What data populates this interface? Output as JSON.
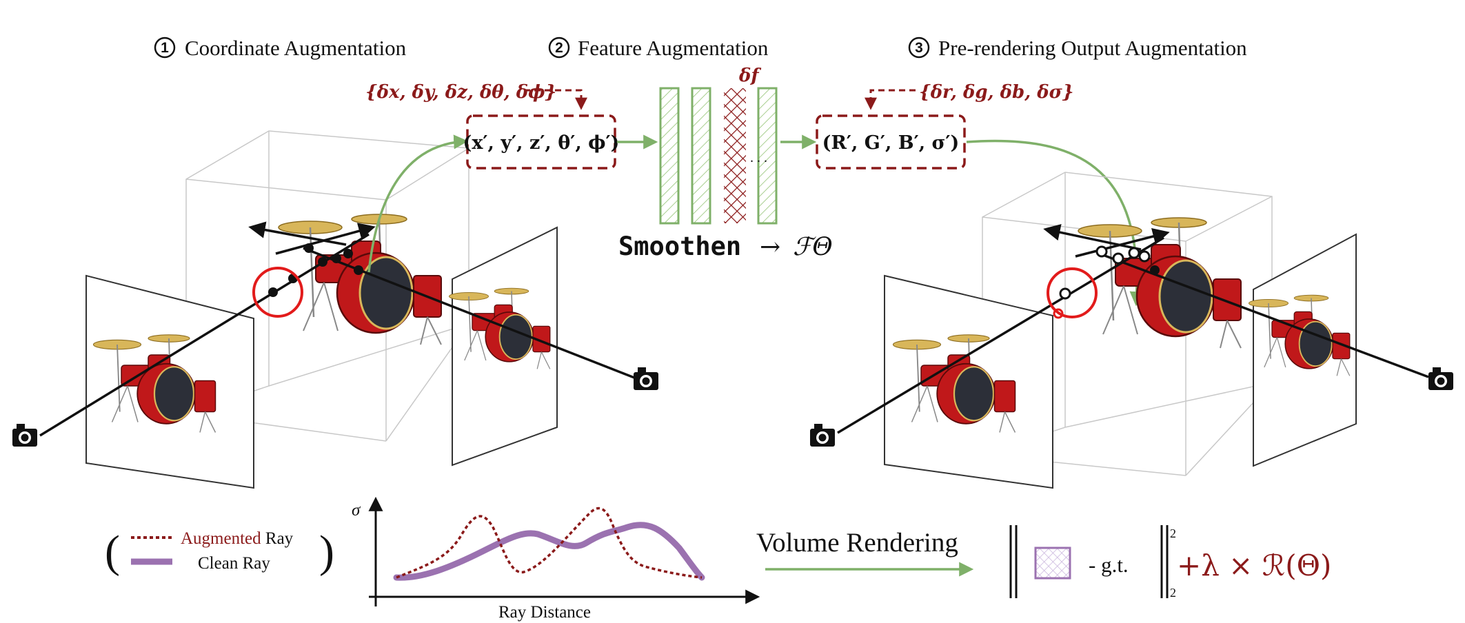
{
  "steps": [
    {
      "num": "1",
      "title": "Coordinate Augmentation"
    },
    {
      "num": "2",
      "title": "Feature Augmentation"
    },
    {
      "num": "3",
      "title": "Pre-rendering Output Augmentation"
    }
  ],
  "coordinate_deltas": "{δx, δy, δz, δθ, δϕ}",
  "coordinate_box": "(x′, y′, z′, θ′, ϕ′)",
  "feature_delta": "δf",
  "network_label": "Smoothen",
  "network_arrow": "→",
  "network_symbol": "ℱΘ",
  "output_deltas": "{δr, δg, δb, δσ}",
  "output_box": "(R′, G′, B′, σ′)",
  "legend": {
    "augmented_word": "Augmented",
    "augmented_suffix": " Ray",
    "clean": "Clean Ray",
    "open_paren": "(",
    "close_paren": ")"
  },
  "plot": {
    "ylabel": "σ",
    "xlabel": "Ray Distance"
  },
  "volume_rendering": "Volume Rendering",
  "loss": {
    "gt": "- g.t.",
    "exp": "2",
    "sub": "2",
    "regularizer": "+λ × ℛ(Θ)"
  },
  "colors": {
    "dark_red": "#8b1a1a",
    "green": "#7fb069",
    "purple": "#9b72b0",
    "drum_red": "#c0181a"
  },
  "icons": [
    "camera-icon",
    "camera-icon",
    "camera-icon",
    "camera-icon",
    "drum-kit-icon"
  ]
}
